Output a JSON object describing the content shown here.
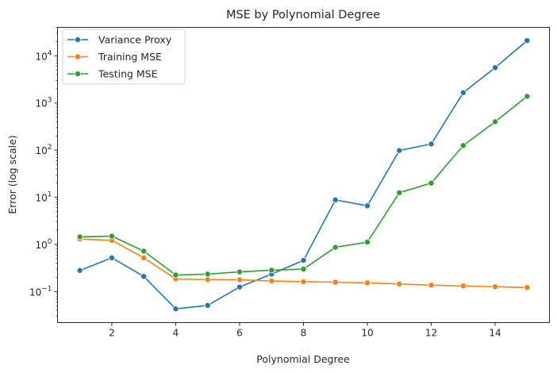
{
  "chart_data": {
    "type": "line",
    "title": "MSE by Polynomial Degree",
    "xlabel": "Polynomial Degree",
    "ylabel": "Error (log scale)",
    "yscale": "log",
    "xlim": [
      0.3,
      15.7
    ],
    "ylim": [
      0.022,
      40000
    ],
    "x": [
      1,
      2,
      3,
      4,
      5,
      6,
      7,
      8,
      9,
      10,
      11,
      12,
      13,
      14,
      15
    ],
    "xticks": [
      2,
      4,
      6,
      8,
      10,
      12,
      14
    ],
    "yticks": [
      {
        "value": 0.1,
        "base": "10",
        "exp": "−1"
      },
      {
        "value": 1,
        "base": "10",
        "exp": "0"
      },
      {
        "value": 10,
        "base": "10",
        "exp": "1"
      },
      {
        "value": 100,
        "base": "10",
        "exp": "2"
      },
      {
        "value": 1000,
        "base": "10",
        "exp": "3"
      },
      {
        "value": 10000,
        "base": "10",
        "exp": "4"
      }
    ],
    "grid": false,
    "legend_position": "top-left",
    "series": [
      {
        "name": "Variance Proxy",
        "color": "#1f77b4",
        "values": [
          0.28,
          0.52,
          0.21,
          0.043,
          0.051,
          0.125,
          0.235,
          0.46,
          8.8,
          6.6,
          98,
          135,
          1650,
          5600,
          21000
        ]
      },
      {
        "name": "Training MSE",
        "color": "#ff7f0e",
        "values": [
          1.3,
          1.22,
          0.52,
          0.185,
          0.18,
          0.178,
          0.168,
          0.162,
          0.158,
          0.153,
          0.145,
          0.137,
          0.132,
          0.127,
          0.122
        ]
      },
      {
        "name": "Testing MSE",
        "color": "#2ca02c",
        "values": [
          1.45,
          1.5,
          0.72,
          0.225,
          0.235,
          0.262,
          0.285,
          0.3,
          0.87,
          1.12,
          12.5,
          20,
          125,
          400,
          1380
        ]
      }
    ]
  }
}
